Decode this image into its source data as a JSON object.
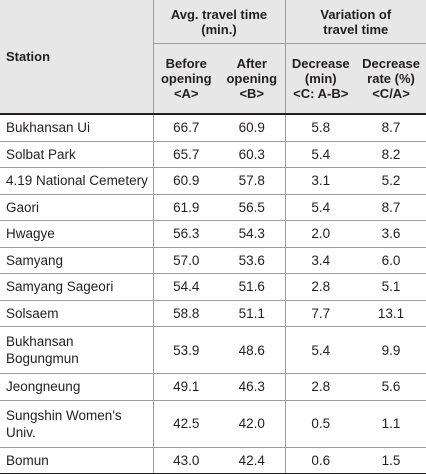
{
  "header": {
    "station": "Station",
    "group_travel": [
      "Avg. travel time",
      "(min.)"
    ],
    "group_variation": [
      "Variation of",
      "travel time"
    ],
    "before": [
      "Before",
      "opening",
      "<A>"
    ],
    "after": [
      "After",
      "opening",
      "<B>"
    ],
    "decrease_min": [
      "Decrease",
      "(min)",
      "<C: A-B>"
    ],
    "decrease_rate": [
      "Decrease",
      "rate (%)",
      "<C/A>"
    ]
  },
  "rows": [
    {
      "station": "Bukhansan Ui",
      "before": "66.7",
      "after": "60.9",
      "decrease": "5.8",
      "rate": "8.7"
    },
    {
      "station": "Solbat Park",
      "before": "65.7",
      "after": "60.3",
      "decrease": "5.4",
      "rate": "8.2"
    },
    {
      "station": "4.19 National Cemetery",
      "before": "60.9",
      "after": "57.8",
      "decrease": "3.1",
      "rate": "5.2"
    },
    {
      "station": "Gaori",
      "before": "61.9",
      "after": "56.5",
      "decrease": "5.4",
      "rate": "8.7"
    },
    {
      "station": "Hwagye",
      "before": "56.3",
      "after": "54.3",
      "decrease": "2.0",
      "rate": "3.6"
    },
    {
      "station": "Samyang",
      "before": "57.0",
      "after": "53.6",
      "decrease": "3.4",
      "rate": "6.0"
    },
    {
      "station": "Samyang Sageori",
      "before": "54.4",
      "after": "51.6",
      "decrease": "2.8",
      "rate": "5.1"
    },
    {
      "station": "Solsaem",
      "before": "58.8",
      "after": "51.1",
      "decrease": "7.7",
      "rate": "13.1"
    },
    {
      "station": "Bukhansan Bogungmun",
      "station_lines": [
        "Bukhansan",
        "Bogungmun"
      ],
      "before": "53.9",
      "after": "48.6",
      "decrease": "5.4",
      "rate": "9.9"
    },
    {
      "station": "Jeongneung",
      "before": "49.1",
      "after": "46.3",
      "decrease": "2.8",
      "rate": "5.6"
    },
    {
      "station": "Sungshin Women's Univ.",
      "station_lines": [
        "Sungshin Women's",
        "Univ."
      ],
      "before": "42.5",
      "after": "42.0",
      "decrease": "0.5",
      "rate": "1.1"
    },
    {
      "station": "Bomun",
      "before": "43.0",
      "after": "42.4",
      "decrease": "0.6",
      "rate": "1.5"
    }
  ]
}
